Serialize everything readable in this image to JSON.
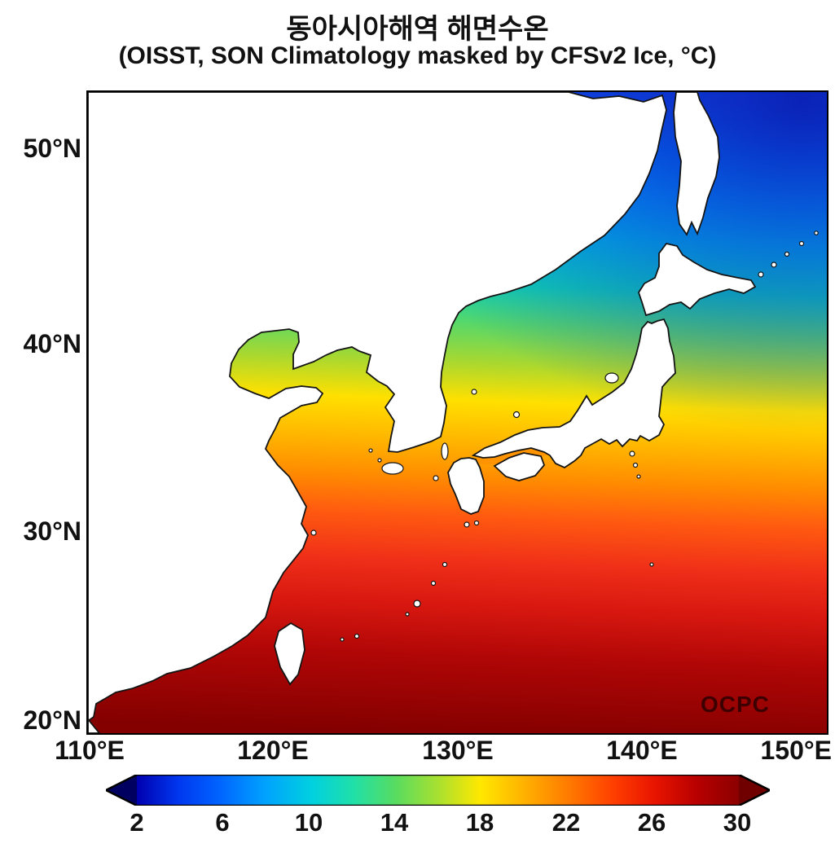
{
  "title": "동아시아해역 해면수온",
  "subtitle": "(OISST, SON Climatology masked by CFSv2 Ice, °C)",
  "watermark": "OCPC",
  "watermark_color": "#3d0000",
  "axes": {
    "lat_ticks": [
      "50°N",
      "40°N",
      "30°N",
      "20°N"
    ],
    "lon_ticks": [
      "110°E",
      "120°E",
      "130°E",
      "140°E",
      "150°E"
    ]
  },
  "colorbar": {
    "ticks": [
      "2",
      "6",
      "10",
      "14",
      "18",
      "22",
      "26",
      "30"
    ],
    "left_arrow_color": "#000060",
    "right_arrow_color": "#700000",
    "gradient": [
      {
        "o": "0%",
        "c": "#0000b0"
      },
      {
        "o": "7%",
        "c": "#0038f0"
      },
      {
        "o": "14%",
        "c": "#0066ff"
      },
      {
        "o": "21%",
        "c": "#00a0ff"
      },
      {
        "o": "29%",
        "c": "#00d0e0"
      },
      {
        "o": "36%",
        "c": "#20e0a8"
      },
      {
        "o": "43%",
        "c": "#58dc60"
      },
      {
        "o": "50%",
        "c": "#a8e030"
      },
      {
        "o": "57%",
        "c": "#ffe800"
      },
      {
        "o": "64%",
        "c": "#ffb400"
      },
      {
        "o": "71%",
        "c": "#ff8000"
      },
      {
        "o": "79%",
        "c": "#ff4000"
      },
      {
        "o": "86%",
        "c": "#e81400"
      },
      {
        "o": "93%",
        "c": "#b80000"
      },
      {
        "o": "100%",
        "c": "#8c0000"
      }
    ]
  },
  "map": {
    "land_color": "#ffffff",
    "coast_color": "#141414",
    "inland_sea_patch_color": "#ff9100",
    "sea_gradient": [
      {
        "o": "0%",
        "c": "#1448e8"
      },
      {
        "o": "8%",
        "c": "#0080ff"
      },
      {
        "o": "15%",
        "c": "#00a8ff"
      },
      {
        "o": "22%",
        "c": "#00c8e8"
      },
      {
        "o": "30%",
        "c": "#10d8b0"
      },
      {
        "o": "36%",
        "c": "#58d868"
      },
      {
        "o": "42%",
        "c": "#a8d830"
      },
      {
        "o": "48%",
        "c": "#ffe000"
      },
      {
        "o": "54%",
        "c": "#ffb800"
      },
      {
        "o": "60%",
        "c": "#ff8c00"
      },
      {
        "o": "66%",
        "c": "#ff5a10"
      },
      {
        "o": "73%",
        "c": "#f03018"
      },
      {
        "o": "80%",
        "c": "#d81810"
      },
      {
        "o": "88%",
        "c": "#b00606"
      },
      {
        "o": "100%",
        "c": "#840000"
      }
    ],
    "ne_gradient": [
      {
        "o": "0%",
        "c": "#0a20b4",
        "a": "0.95"
      },
      {
        "o": "45%",
        "c": "#0a34cc",
        "a": "0.55"
      },
      {
        "o": "100%",
        "c": "#0a34cc",
        "a": "0"
      }
    ]
  },
  "chart_data": {
    "type": "heatmap",
    "title": "동아시아해역 해면수온",
    "subtitle": "(OISST, SON Climatology masked by CFSv2 Ice, °C)",
    "units": "°C",
    "x": {
      "ticks": [
        "110°E",
        "120°E",
        "130°E",
        "140°E",
        "150°E"
      ],
      "range_deg_east": [
        110,
        150
      ]
    },
    "y": {
      "ticks": [
        "20°N",
        "30°N",
        "40°N",
        "50°N"
      ],
      "range_deg_north": [
        20,
        53
      ]
    },
    "colorbar": {
      "ticks": [
        2,
        6,
        10,
        14,
        18,
        22,
        26,
        30
      ],
      "units": "°C",
      "extend": "both",
      "position": "bottom-horizontal"
    },
    "approx_sst_c_by_latitude": [
      {
        "lat_n": 20,
        "sst_c": 29
      },
      {
        "lat_n": 25,
        "sst_c": 27.5
      },
      {
        "lat_n": 30,
        "sst_c": 26
      },
      {
        "lat_n": 35,
        "sst_c": 22
      },
      {
        "lat_n": 40,
        "sst_c": 17
      },
      {
        "lat_n": 45,
        "sst_c": 12
      },
      {
        "lat_n": 50,
        "sst_c": 7
      },
      {
        "lat_n": 53,
        "sst_c": 4
      }
    ],
    "pattern_note": "SST decreases from ~29-30°C (dark red) in the southern East/South China Sea to ~2-4°C (deep blue) in the northeast Sea of Okhotsk; isotherms run roughly zonally; coldest water in the top-right corner",
    "masked_white_regions": [
      "China mainland coast",
      "Korean Peninsula",
      "Japan (Kyushu, Shikoku, Honshu, Hokkaido)",
      "Taiwan",
      "Sakhalin",
      "small islands"
    ]
  }
}
